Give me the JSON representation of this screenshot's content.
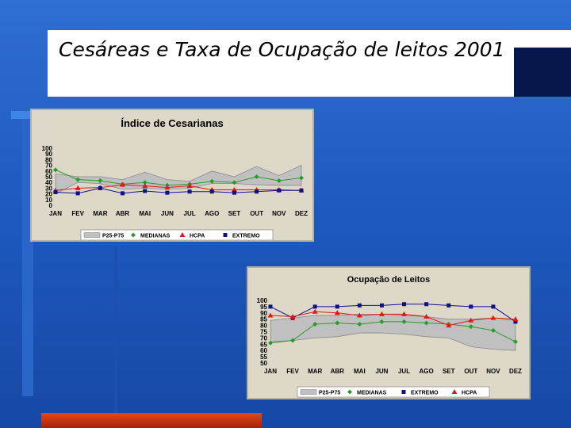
{
  "slide": {
    "title": "Cesáreas e Taxa de Ocupação de leitos 2001",
    "colors": {
      "background": "#1f5bc0",
      "bottom_bar": "#d2401a",
      "panel": "#ddd8c8",
      "band": "#c0c0c0"
    }
  },
  "chart_data": [
    {
      "type": "line",
      "title": "Índice de Cesarianas",
      "categories": [
        "JAN",
        "FEV",
        "MAR",
        "ABR",
        "MAI",
        "JUN",
        "JUL",
        "AGO",
        "SET",
        "OUT",
        "NOV",
        "DEZ"
      ],
      "y_ticks": [
        "100",
        "90",
        "80",
        "70",
        "60",
        "50",
        "40",
        "30",
        "20",
        "10",
        "0"
      ],
      "ylim": [
        0,
        100
      ],
      "band": {
        "name": "P25-P75",
        "lower": [
          20,
          40,
          38,
          28,
          30,
          28,
          30,
          38,
          38,
          36,
          35,
          35
        ],
        "upper": [
          55,
          50,
          50,
          45,
          58,
          45,
          42,
          60,
          50,
          68,
          52,
          70
        ]
      },
      "series": [
        {
          "name": "MEDIANAS",
          "color": "#2a9a2a",
          "marker": "diamond",
          "values": [
            62,
            45,
            43,
            37,
            40,
            35,
            37,
            42,
            40,
            50,
            43,
            48
          ]
        },
        {
          "name": "HCPA",
          "color": "#e01818",
          "marker": "triangle",
          "values": [
            26,
            30,
            31,
            36,
            34,
            31,
            34,
            27,
            27,
            27,
            27,
            26
          ]
        },
        {
          "name": "EXTREMO",
          "color": "#10108a",
          "marker": "square",
          "values": [
            23,
            21,
            30,
            21,
            25,
            22,
            24,
            24,
            22,
            24,
            26,
            26
          ]
        }
      ],
      "legend": {
        "placement": "bottom",
        "items": [
          "P25-P75",
          "MEDIANAS",
          "HCPA",
          "EXTREMO"
        ]
      }
    },
    {
      "type": "line",
      "title": "Ocupação de Leitos",
      "categories": [
        "JAN",
        "FEV",
        "MAR",
        "ABR",
        "MAI",
        "JUN",
        "JUL",
        "AGO",
        "SET",
        "OUT",
        "NOV",
        "DEZ"
      ],
      "y_ticks": [
        "100",
        "95",
        "90",
        "85",
        "80",
        "75",
        "70",
        "65",
        "60",
        "55",
        "50"
      ],
      "ylim": [
        50,
        100
      ],
      "band": {
        "name": "P25-P75",
        "lower": [
          67,
          68,
          70,
          71,
          74,
          74,
          73,
          71,
          70,
          63,
          61,
          60
        ],
        "upper": [
          84,
          86,
          88,
          88,
          89,
          89,
          88,
          87,
          85,
          85,
          86,
          84
        ]
      },
      "series": [
        {
          "name": "MEDIANAS",
          "color": "#2a9a2a",
          "marker": "diamond",
          "values": [
            66,
            68,
            81,
            82,
            81,
            83,
            83,
            82,
            81,
            79,
            76,
            67
          ]
        },
        {
          "name": "EXTREMO",
          "color": "#10108a",
          "marker": "square",
          "values": [
            95,
            86,
            95,
            95,
            96,
            96,
            97,
            97,
            96,
            95,
            95,
            83
          ]
        },
        {
          "name": "HCPA",
          "color": "#e01818",
          "marker": "triangle",
          "values": [
            88,
            87,
            91,
            90,
            88,
            89,
            89,
            87,
            80,
            84,
            86,
            85
          ]
        }
      ],
      "legend": {
        "placement": "bottom",
        "items": [
          "P25-P75",
          "MEDIANAS",
          "EXTREMO",
          "HCPA"
        ]
      }
    }
  ]
}
